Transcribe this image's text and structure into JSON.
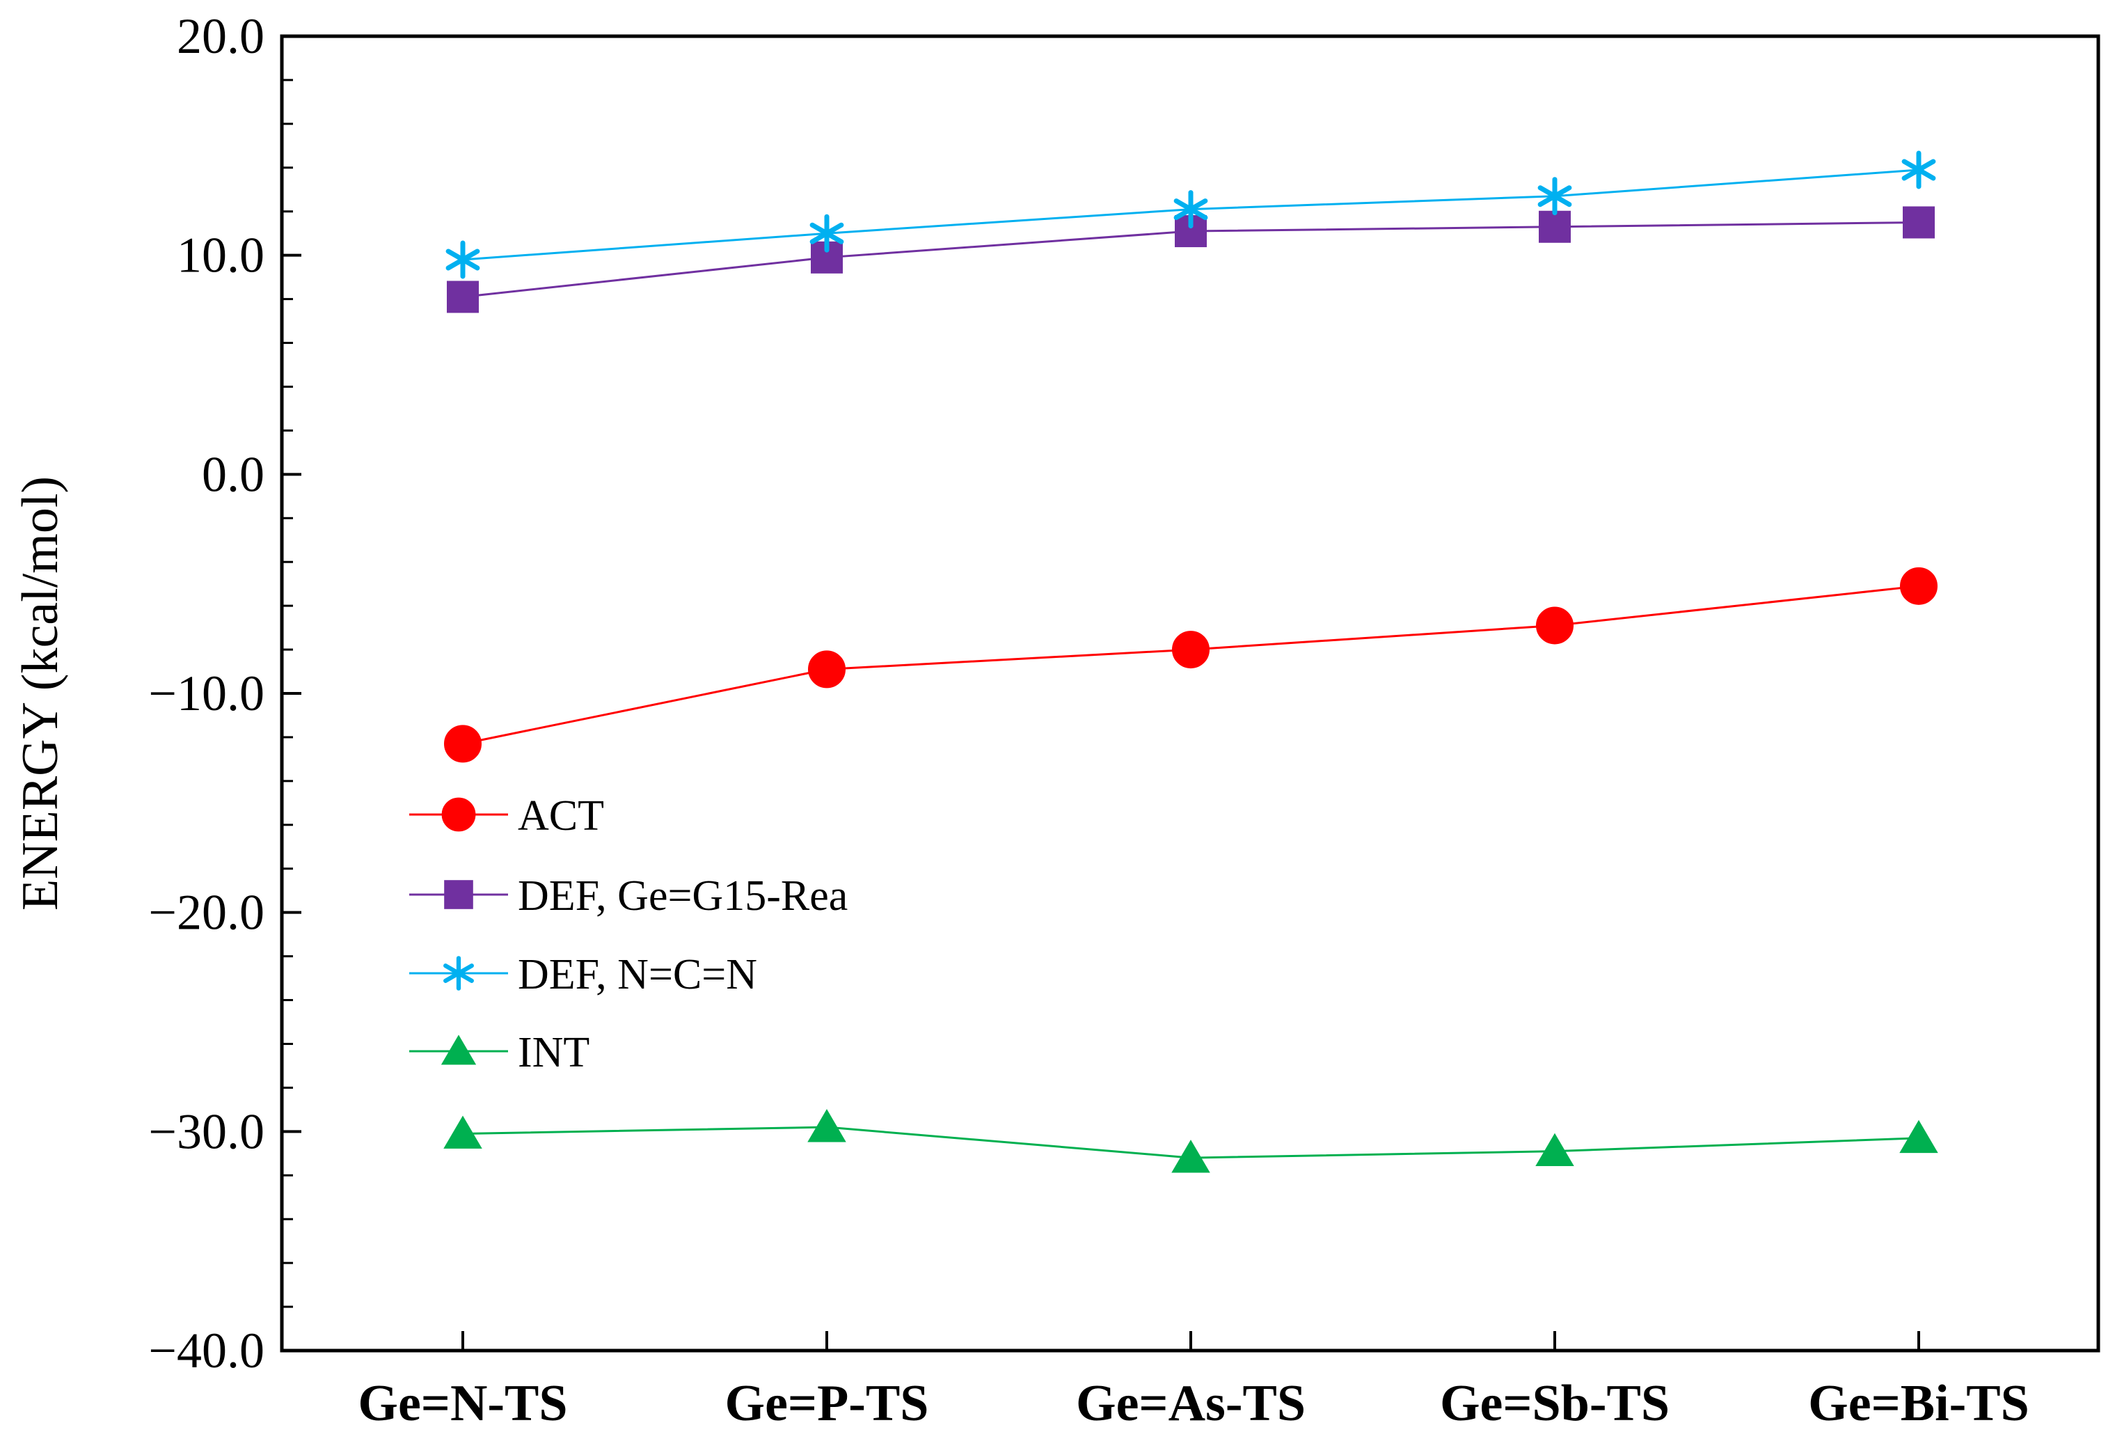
{
  "chart_data": {
    "type": "line",
    "title": "",
    "xlabel": "",
    "ylabel": "ENERGY (kcal/mol)",
    "ylim": [
      -40,
      20
    ],
    "yticks": [
      20,
      10,
      0,
      -10,
      -20,
      -30,
      -40
    ],
    "ytick_labels": [
      "20.0",
      "10.0",
      "0.0",
      "−10.0",
      "−20.0",
      "−30.0",
      "−40.0"
    ],
    "categories": [
      "Ge=N-TS",
      "Ge=P-TS",
      "Ge=As-TS",
      "Ge=Sb-TS",
      "Ge=Bi-TS"
    ],
    "grid": false,
    "legend_position": "center-left",
    "series": [
      {
        "name": "ACT",
        "color": "#ff0000",
        "marker": "circle",
        "values": [
          -12.3,
          -8.9,
          -8.0,
          -6.9,
          -5.1
        ]
      },
      {
        "name": "DEF, Ge=G15-Rea",
        "color": "#7030a0",
        "marker": "square",
        "values": [
          8.1,
          9.9,
          11.1,
          11.3,
          11.5
        ]
      },
      {
        "name": "DEF, N=C=N",
        "color": "#00b0f0",
        "marker": "asterisk",
        "values": [
          9.8,
          11.0,
          12.1,
          12.7,
          13.9
        ]
      },
      {
        "name": "INT",
        "color": "#00b050",
        "marker": "triangle",
        "values": [
          -30.1,
          -29.8,
          -31.2,
          -30.9,
          -30.3
        ]
      }
    ]
  }
}
